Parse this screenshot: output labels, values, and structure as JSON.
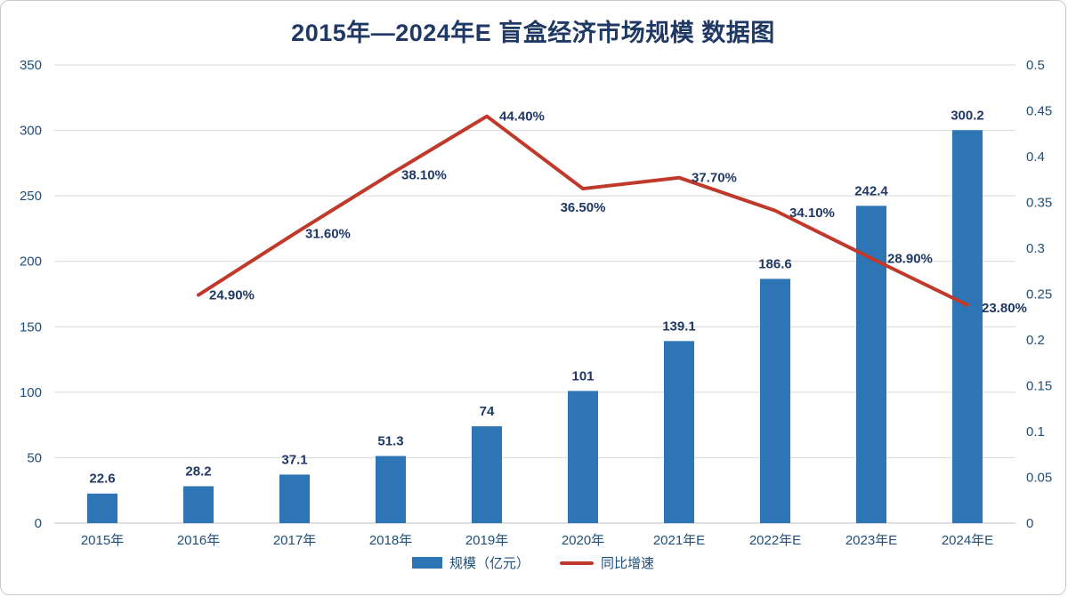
{
  "title": "2015年—2024年E 盲盒经济市场规模 数据图",
  "legend": {
    "bar_label": "规模（亿元）",
    "line_label": "同比增速"
  },
  "colors": {
    "bar": "#2E75B6",
    "line": "#C0392B",
    "title_text": "#1F3864",
    "axis_text": "#1F4E79",
    "data_label_text": "#1F3864",
    "grid": "#D9D9D9",
    "axis_line": "#BFBFBF"
  },
  "chart_data": {
    "type": "bar",
    "subtype": "bar+line combo, dual axis",
    "title": "2015年—2024年E 盲盒经济市场规模 数据图",
    "categories": [
      "2015年",
      "2016年",
      "2017年",
      "2018年",
      "2019年",
      "2020年",
      "2021年E",
      "2022年E",
      "2023年E",
      "2024年E"
    ],
    "series": [
      {
        "name": "规模（亿元）",
        "type": "bar",
        "axis": "left",
        "values": [
          22.6,
          28.2,
          37.1,
          51.3,
          74,
          101,
          139.1,
          186.6,
          242.4,
          300.2
        ],
        "labels": [
          "22.6",
          "28.2",
          "37.1",
          "51.3",
          "74",
          "101",
          "139.1",
          "186.6",
          "242.4",
          "300.2"
        ]
      },
      {
        "name": "同比增速",
        "type": "line",
        "axis": "right",
        "values": [
          null,
          0.249,
          0.316,
          0.381,
          0.444,
          0.365,
          0.377,
          0.341,
          0.289,
          0.238
        ],
        "labels": [
          null,
          "24.90%",
          "31.60%",
          "38.10%",
          "44.40%",
          "36.50%",
          "37.70%",
          "34.10%",
          "28.90%",
          "23.80%"
        ]
      }
    ],
    "left_axis": {
      "min": 0,
      "max": 350,
      "step": 50,
      "ticks": [
        "0",
        "50",
        "100",
        "150",
        "200",
        "250",
        "300",
        "350"
      ]
    },
    "right_axis": {
      "min": 0,
      "max": 0.5,
      "step": 0.05,
      "ticks": [
        "0",
        "0.05",
        "0.1",
        "0.15",
        "0.2",
        "0.25",
        "0.3",
        "0.35",
        "0.4",
        "0.45",
        "0.5"
      ]
    },
    "grid": "horizontal",
    "legend_position": "bottom",
    "line_label_offsets": [
      null,
      [
        12,
        5,
        "start"
      ],
      [
        12,
        5,
        "start"
      ],
      [
        12,
        6,
        "start"
      ],
      [
        14,
        5,
        "start"
      ],
      [
        0,
        26,
        "middle"
      ],
      [
        14,
        5,
        "start"
      ],
      [
        16,
        7,
        "start"
      ],
      [
        18,
        5,
        "start"
      ],
      [
        16,
        8,
        "start"
      ]
    ]
  }
}
